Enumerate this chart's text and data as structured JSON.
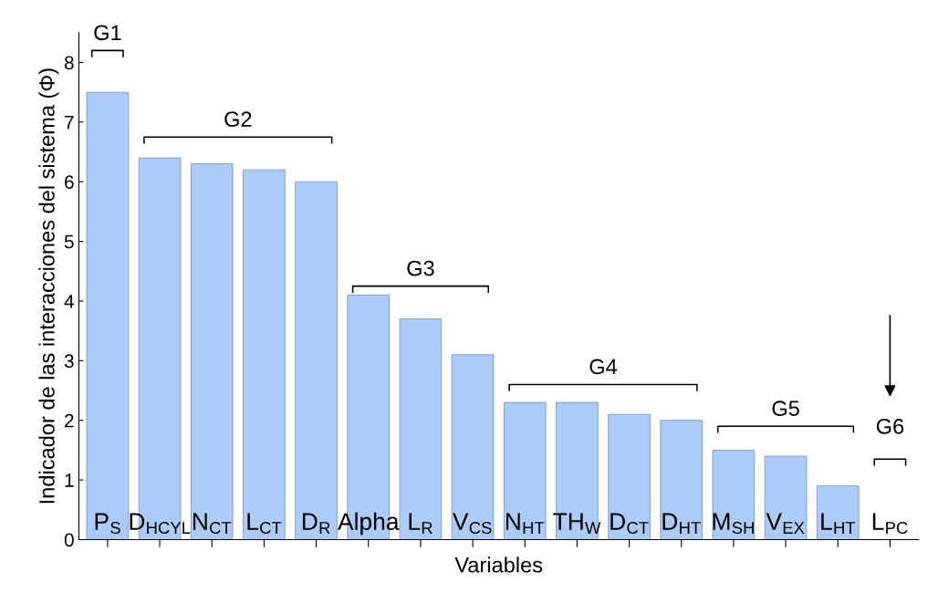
{
  "chart_data": {
    "type": "bar",
    "xlabel": "Variables",
    "ylabel": "Indicador de las interacciones del sistema (Φ)",
    "categories": [
      "P$_{S}$",
      "D$_{HCYL}$",
      "N$_{CT}$",
      "L$_{CT}$",
      "D$_{R}$",
      "Alpha",
      "L$_{R}$",
      "V$_{CS}$",
      "N$_{HT}$",
      "TH$_{W}$",
      "D$_{CT}$",
      "D$_{HT}$",
      "M$_{SH}$",
      "V$_{EX}$",
      "L$_{HT}$",
      "L$_{PC}$"
    ],
    "values": [
      7.5,
      6.4,
      6.3,
      6.2,
      6.0,
      4.1,
      3.7,
      3.1,
      2.3,
      2.3,
      2.1,
      2.0,
      1.5,
      1.4,
      0.9,
      null
    ],
    "color": "#acccf7",
    "ylim": [
      0,
      8.5
    ],
    "yticks": [
      0,
      1,
      2,
      3,
      4,
      5,
      6,
      7,
      8
    ],
    "annotations": [
      "G1",
      "G2",
      "G3",
      "G4",
      "G5",
      "G6"
    ],
    "grid": false
  }
}
